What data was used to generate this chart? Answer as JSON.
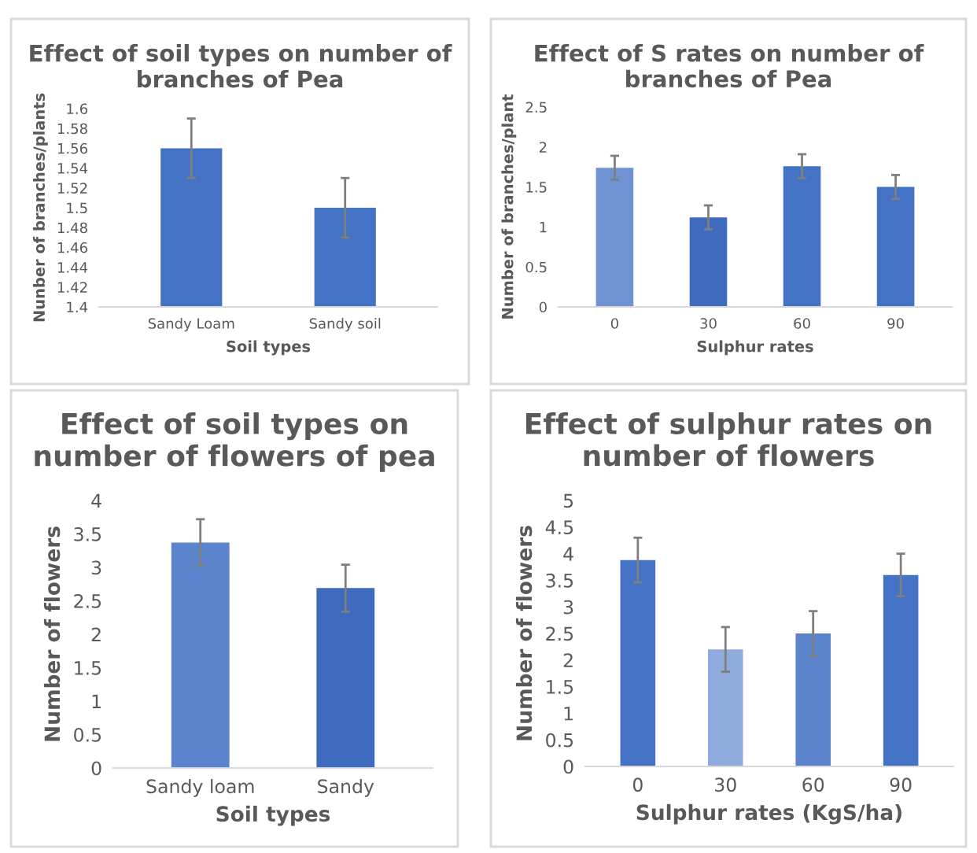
{
  "chart_data": [
    {
      "type": "bar",
      "title": "Effect of soil types on number of branches of Pea",
      "xlabel": "Soil types",
      "ylabel": "Nunber of branches/plants",
      "categories": [
        "Sandy Loam",
        "Sandy soil"
      ],
      "values": [
        1.56,
        1.5
      ],
      "errors": [
        0.03,
        0.03
      ],
      "colors": [
        "#4472c4",
        "#4472c4"
      ],
      "ylim": [
        1.4,
        1.6
      ],
      "yticks": [
        1.4,
        1.42,
        1.44,
        1.46,
        1.48,
        1.5,
        1.52,
        1.54,
        1.56,
        1.58,
        1.6
      ],
      "grid": false
    },
    {
      "type": "bar",
      "title": "Effect of S rates on number of branches of Pea",
      "xlabel": "Sulphur rates",
      "ylabel": "Number of branches/plant",
      "categories": [
        "0",
        "30",
        "60",
        "90"
      ],
      "values": [
        1.74,
        1.12,
        1.76,
        1.5
      ],
      "errors": [
        0.15,
        0.15,
        0.15,
        0.15
      ],
      "colors": [
        "#6f93d2",
        "#3e6bbd",
        "#4472c4",
        "#4472c4"
      ],
      "ylim": [
        0,
        2.5
      ],
      "yticks": [
        0,
        0.5,
        1,
        1.5,
        2,
        2.5
      ],
      "grid": false
    },
    {
      "type": "bar",
      "title": "Effect of soil types on number of flowers of pea",
      "xlabel": "Soil types",
      "ylabel": "Number of flowers",
      "categories": [
        "Sandy loam",
        "Sandy"
      ],
      "values": [
        3.37,
        2.69
      ],
      "errors": [
        0.35,
        0.35
      ],
      "colors": [
        "#5b84cc",
        "#3e6bbd"
      ],
      "ylim": [
        0,
        4
      ],
      "yticks": [
        0,
        0.5,
        1,
        1.5,
        2,
        2.5,
        3,
        3.5,
        4
      ],
      "grid": false
    },
    {
      "type": "bar",
      "title": "Effect of sulphur rates on number of flowers",
      "xlabel": "Sulphur rates (KgS/ha)",
      "ylabel": "Number of flowers",
      "categories": [
        "0",
        "30",
        "60",
        "90"
      ],
      "values": [
        3.88,
        2.2,
        2.5,
        3.6
      ],
      "errors": [
        0.42,
        0.42,
        0.42,
        0.4
      ],
      "colors": [
        "#4472c4",
        "#8fabdd",
        "#5b84cc",
        "#4472c4"
      ],
      "ylim": [
        0,
        5
      ],
      "yticks": [
        0,
        0.5,
        1,
        1.5,
        2,
        2.5,
        3,
        3.5,
        4,
        4.5,
        5
      ],
      "grid": false
    }
  ]
}
